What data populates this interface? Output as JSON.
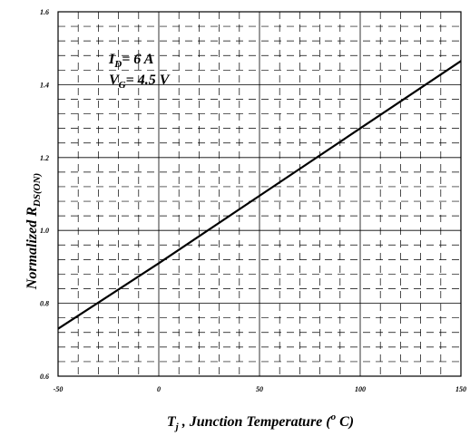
{
  "chart_data": {
    "type": "line",
    "title": "",
    "xlabel": {
      "main": "T",
      "sub": "j",
      "rest": " , Junction Temperature (",
      "sup": "o",
      "end": " C)"
    },
    "ylabel": {
      "main": "Normalized R",
      "sub": "DS(ON)"
    },
    "xlim": [
      -50,
      150
    ],
    "ylim": [
      0.6,
      1.6
    ],
    "x_ticks": [
      -50,
      0,
      50,
      100,
      150
    ],
    "x_tick_labels": [
      "-50",
      "0",
      "50",
      "100",
      "150"
    ],
    "y_ticks": [
      0.6,
      0.8,
      1.0,
      1.2,
      1.4,
      1.6
    ],
    "y_tick_labels": [
      "0.6",
      "0.8",
      "1.0",
      "1.2",
      "1.4",
      "1.6"
    ],
    "grid": "major solid, minor dashed",
    "annotations": [
      {
        "main": "I",
        "sub": "D",
        "value": "= 6 A"
      },
      {
        "main": "V",
        "sub": "G",
        "value": "= 4.5 V"
      }
    ],
    "series": [
      {
        "x": [
          -50,
          0,
          50,
          100,
          150
        ],
        "y": [
          0.73,
          0.91,
          1.095,
          1.28,
          1.465
        ]
      }
    ]
  }
}
